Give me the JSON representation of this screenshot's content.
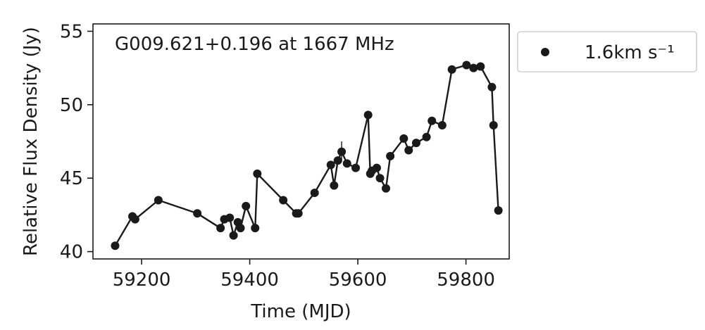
{
  "chart_data": {
    "type": "line",
    "annotation": "G009.621+0.196 at 1667 MHz",
    "xlabel": "Time (MJD)",
    "ylabel": "Relative Flux Density (Jy)",
    "xlim": [
      59110,
      59880
    ],
    "ylim": [
      39.5,
      55.5
    ],
    "xticks": [
      59200,
      59400,
      59600,
      59800
    ],
    "yticks": [
      40,
      45,
      50,
      55
    ],
    "grid": false,
    "legend_position": "outside-top-right",
    "series": [
      {
        "name": "1.6km s⁻¹",
        "color": "#1a1a1a",
        "marker": "circle",
        "x": [
          59151,
          59183,
          59188,
          59231,
          59303,
          59346,
          59353,
          59363,
          59370,
          59378,
          59383,
          59393,
          59410,
          59414,
          59462,
          59486,
          59490,
          59520,
          59550,
          59556,
          59563,
          59570,
          59580,
          59596,
          59619,
          59623,
          59626,
          59635,
          59641,
          59652,
          59660,
          59685,
          59694,
          59708,
          59727,
          59737,
          59756,
          59774,
          59801,
          59814,
          59827,
          59848,
          59851,
          59860
        ],
        "y": [
          40.4,
          42.4,
          42.2,
          43.5,
          42.6,
          41.6,
          42.2,
          42.3,
          41.1,
          42.0,
          41.6,
          43.1,
          41.6,
          45.3,
          43.5,
          42.6,
          42.6,
          44.0,
          45.9,
          44.5,
          46.2,
          46.8,
          46.0,
          45.7,
          49.3,
          45.3,
          45.5,
          45.7,
          45.0,
          44.3,
          46.5,
          47.7,
          46.9,
          47.4,
          47.8,
          48.9,
          48.6,
          52.4,
          52.7,
          52.5,
          52.6,
          51.2,
          48.6,
          42.8
        ],
        "yerr": [
          0.2,
          0.2,
          0.2,
          0.2,
          0.2,
          0.2,
          0.2,
          0.2,
          0.2,
          0.2,
          0.2,
          0.2,
          0.2,
          0.2,
          0.2,
          0.2,
          0.2,
          0.2,
          0.2,
          0.2,
          0.2,
          0.7,
          0.2,
          0.2,
          0.2,
          0.2,
          0.2,
          0.2,
          0.2,
          0.2,
          0.2,
          0.2,
          0.2,
          0.2,
          0.2,
          0.2,
          0.2,
          0.2,
          0.2,
          0.2,
          0.2,
          0.2,
          0.2,
          0.2
        ]
      }
    ]
  }
}
